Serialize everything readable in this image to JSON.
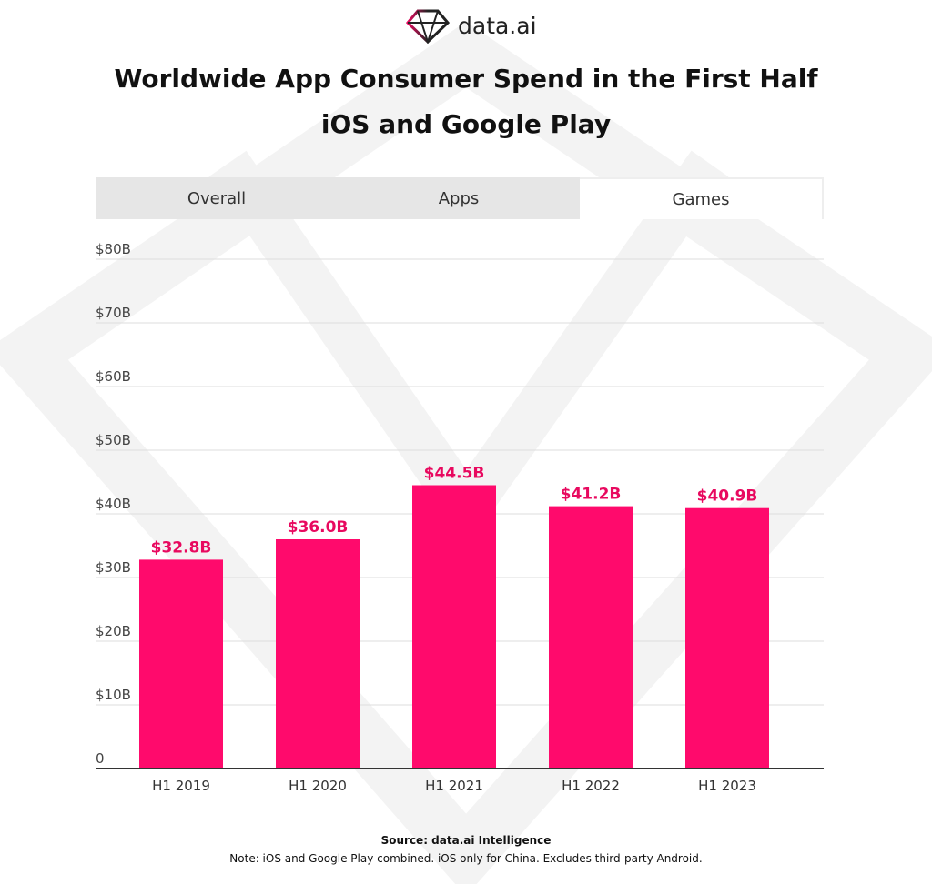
{
  "logo": {
    "text": "data.ai"
  },
  "title_line1": "Worldwide App Consumer Spend in the First Half",
  "title_line2": "iOS and Google Play",
  "tabs": [
    {
      "label": "Overall"
    },
    {
      "label": "Apps"
    },
    {
      "label": "Games"
    }
  ],
  "active_tab": "Games",
  "colors": {
    "bar": "#ff0a6c",
    "label": "#e8095f"
  },
  "chart_data": {
    "type": "bar",
    "title": "Worldwide App Consumer Spend in the First Half",
    "categories": [
      "H1 2019",
      "H1 2020",
      "H1 2021",
      "H1 2022",
      "H1 2023"
    ],
    "values": [
      32.8,
      36.0,
      44.5,
      41.2,
      40.9
    ],
    "data_labels": [
      "$32.8B",
      "$36.0B",
      "$44.5B",
      "$41.2B",
      "$40.9B"
    ],
    "yticks": [
      0,
      10,
      20,
      30,
      40,
      50,
      60,
      70,
      80
    ],
    "ytick_labels": [
      "0",
      "$10B",
      "$20B",
      "$30B",
      "$40B",
      "$50B",
      "$60B",
      "$70B",
      "$80B"
    ],
    "ylim": [
      0,
      80
    ],
    "grid": true
  },
  "source": "Source: data.ai Intelligence",
  "note": "Note: iOS and Google Play combined. iOS only for China. Excludes third-party Android."
}
